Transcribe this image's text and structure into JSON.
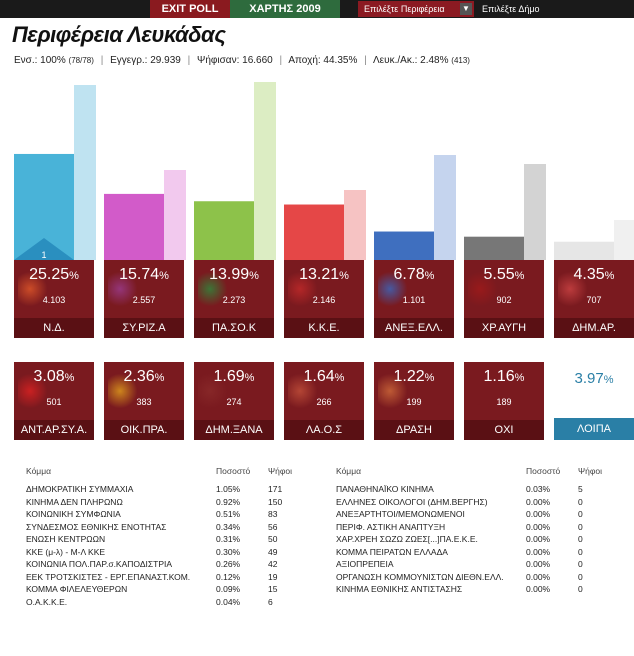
{
  "topbar": {
    "exit_poll": "EXIT POLL",
    "map": "ΧΑΡΤΗΣ 2009",
    "select_region": "Επιλέξτε Περιφέρεια",
    "select_deme": "Επιλέξτε Δήμο"
  },
  "title": "Περιφέρεια Λευκάδας",
  "stats": {
    "ens_label": "Ενσ.: 100%",
    "ens_small": "(78/78)",
    "egg": "Εγγεγρ.: 29.939",
    "psif": "Ψήφισαν: 16.660",
    "apoxi": "Αποχή: 44.35%",
    "leyk": "Λευκ./Ακ.: 2.48%",
    "leyk_small": "(413)"
  },
  "colors": {
    "nd": "#49b3d8",
    "syriza": "#d25bc9",
    "pasok": "#8dc24a",
    "kke": "#e54747",
    "anel": "#3f6fbf",
    "xa": "#777777",
    "dimar": "#e6e6e6",
    "card": "#7a1a1f",
    "lipa": "#2a7fa6"
  },
  "rank_label": "1",
  "chart_data": {
    "type": "bar",
    "categories": [
      "Ν.Δ.",
      "ΣΥ.ΡΙΖ.Α",
      "ΠΑ.ΣΟ.Κ",
      "Κ.Κ.Ε.",
      "ΑΝΕΞ.ΕΛΛ.",
      "ΧΡ.ΑΥΓΗ",
      "ΔΗΜ.ΑΡ."
    ],
    "series": [
      {
        "values": [
          25.25,
          15.74,
          13.99,
          13.21,
          6.78,
          5.55,
          4.35
        ]
      }
    ]
  },
  "cards_top": [
    {
      "pct": "25.25",
      "votes": "4.103",
      "name": "Ν.Δ."
    },
    {
      "pct": "15.74",
      "votes": "2.557",
      "name": "ΣΥ.ΡΙΖ.Α"
    },
    {
      "pct": "13.99",
      "votes": "2.273",
      "name": "ΠΑ.ΣΟ.Κ"
    },
    {
      "pct": "13.21",
      "votes": "2.146",
      "name": "Κ.Κ.Ε."
    },
    {
      "pct": "6.78",
      "votes": "1.101",
      "name": "ΑΝΕΞ.ΕΛΛ."
    },
    {
      "pct": "5.55",
      "votes": "902",
      "name": "ΧΡ.ΑΥΓΗ"
    },
    {
      "pct": "4.35",
      "votes": "707",
      "name": "ΔΗΜ.ΑΡ."
    }
  ],
  "cards_bottom": [
    {
      "pct": "3.08",
      "votes": "501",
      "name": "ΑΝΤ.ΑΡ.ΣΥ.Α."
    },
    {
      "pct": "2.36",
      "votes": "383",
      "name": "ΟΙΚ.ΠΡΑ."
    },
    {
      "pct": "1.69",
      "votes": "274",
      "name": "ΔΗΜ.ΞΑΝΑ"
    },
    {
      "pct": "1.64",
      "votes": "266",
      "name": "ΛΑ.Ο.Σ"
    },
    {
      "pct": "1.22",
      "votes": "199",
      "name": "ΔΡΑΣΗ"
    },
    {
      "pct": "1.16",
      "votes": "189",
      "name": "ΟΧΙ"
    }
  ],
  "lipa": {
    "pct": "3.97",
    "name": "ΛΟΙΠΑ"
  },
  "table_headers": {
    "party": "Κόμμα",
    "pct": "Ποσοστό",
    "votes": "Ψήφοι"
  },
  "table_left": [
    {
      "party": "ΔΗΜΟΚΡΑΤΙΚΗ ΣΥΜΜΑΧΙΑ",
      "pct": "1.05%",
      "votes": "171"
    },
    {
      "party": "ΚΙΝΗΜΑ ΔΕΝ ΠΛΗΡΩΝΩ",
      "pct": "0.92%",
      "votes": "150"
    },
    {
      "party": "ΚΟΙΝΩΝΙΚΗ ΣΥΜΦΩΝΙΑ",
      "pct": "0.51%",
      "votes": "83"
    },
    {
      "party": "ΣΥΝΔΕΣΜΟΣ ΕΘΝΙΚΗΣ ΕΝΟΤΗΤΑΣ",
      "pct": "0.34%",
      "votes": "56"
    },
    {
      "party": "ΕΝΩΣΗ ΚΕΝΤΡΩΩΝ",
      "pct": "0.31%",
      "votes": "50"
    },
    {
      "party": "ΚΚΕ (μ-λ) - Μ-Λ ΚΚΕ",
      "pct": "0.30%",
      "votes": "49"
    },
    {
      "party": "ΚΟΙΝΩΝΙΑ ΠΟΛ.ΠΑΡ.σ.ΚΑΠΟΔΙΣΤΡΙΑ",
      "pct": "0.26%",
      "votes": "42"
    },
    {
      "party": "ΕΕΚ ΤΡΟΤΣΚΙΣΤΕΣ - ΕΡΓ.ΕΠΑΝΑΣΤ.ΚΟΜ.",
      "pct": "0.12%",
      "votes": "19"
    },
    {
      "party": "ΚΟΜΜΑ ΦΙΛΕΛΕΥΘΕΡΩΝ",
      "pct": "0.09%",
      "votes": "15"
    },
    {
      "party": "Ο.Α.Κ.Κ.Ε.",
      "pct": "0.04%",
      "votes": "6"
    }
  ],
  "table_right": [
    {
      "party": "ΠΑΝΑΘΗΝΑΪΚΟ ΚΙΝΗΜΑ",
      "pct": "0.03%",
      "votes": "5"
    },
    {
      "party": "ΕΛΛΗΝΕΣ ΟΙΚΟΛΟΓΟΙ (ΔΗΜ.ΒΕΡΓΗΣ)",
      "pct": "0.00%",
      "votes": "0"
    },
    {
      "party": "ΑΝΕΞΑΡΤΗΤΟΙ/ΜΕΜΟΝΩΜΕΝΟΙ",
      "pct": "0.00%",
      "votes": "0"
    },
    {
      "party": "ΠΕΡΙΦ. ΑΣΤΙΚΗ ΑΝΑΠΤΥΞΗ",
      "pct": "0.00%",
      "votes": "0"
    },
    {
      "party": "ΧΑΡ.ΧΡΕΗ ΣΩΖΩ ΖΩΕΣ[...]ΠΑ.Ε.Κ.Ε.",
      "pct": "0.00%",
      "votes": "0"
    },
    {
      "party": "ΚΟΜΜΑ ΠΕΙΡΑΤΩΝ ΕΛΛΑΔΑ",
      "pct": "0.00%",
      "votes": "0"
    },
    {
      "party": "ΑΞΙΟΠΡΕΠΕΙΑ",
      "pct": "0.00%",
      "votes": "0"
    },
    {
      "party": "ΟΡΓΑΝΩΣΗ ΚΟΜΜΟΥΝΙΣΤΩΝ ΔΙΕΘΝ.ΕΛΛ.",
      "pct": "0.00%",
      "votes": "0"
    },
    {
      "party": "ΚΙΝΗΜΑ ΕΘΝΙΚΗΣ ΑΝΤΙΣΤΑΣΗΣ",
      "pct": "0.00%",
      "votes": "0"
    }
  ]
}
